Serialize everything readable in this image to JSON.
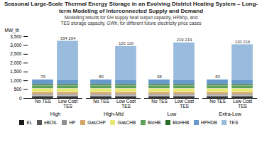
{
  "chart_data": {
    "type": "bar",
    "stacked": true,
    "title": "Seasonal Large-Scale Thermal Energy Storage in an Evolving District Heating System – Long-term Modeling of Interconnected Supply and Demand",
    "subtitle": "Modelling results for DH supply heat output capacity, HPAhp, and\nTES storage capacity, GWh, for different future electricity price cases",
    "ylabel": "MW_th",
    "categories": [
      "No TES",
      "Low Cost\nTES",
      "No TES",
      "Low Cost\nTES",
      "No TES",
      "Low Cost\nTES",
      "No TES",
      "Low Cost\nTES"
    ],
    "groups": [
      "High",
      "High",
      "High-Mid",
      "High-Mid",
      "Low",
      "Low",
      "Extra-Low",
      "Extra-Low"
    ],
    "series": [
      {
        "name": "EL",
        "color": "#1a1a1a",
        "values": [
          100,
          100,
          100,
          100,
          100,
          100,
          100,
          100
        ]
      },
      {
        "name": "eBOIL",
        "color": "#555555",
        "values": [
          50,
          50,
          50,
          50,
          50,
          50,
          50,
          50
        ]
      },
      {
        "name": "HP",
        "color": "#909090",
        "values": [
          80,
          80,
          80,
          80,
          80,
          80,
          80,
          80
        ]
      },
      {
        "name": "GasCHP",
        "color": "#d4a56a",
        "values": [
          120,
          120,
          120,
          120,
          120,
          120,
          120,
          120
        ]
      },
      {
        "name": "GasCHB",
        "color": "#e8e870",
        "values": [
          200,
          200,
          200,
          200,
          200,
          200,
          200,
          200
        ]
      },
      {
        "name": "BioHB",
        "color": "#5ca05c",
        "values": [
          150,
          150,
          150,
          150,
          150,
          150,
          150,
          150
        ]
      },
      {
        "name": "BioHHB",
        "color": "#2a6e2a",
        "values": [
          100,
          100,
          100,
          100,
          100,
          100,
          100,
          100
        ]
      },
      {
        "name": "HPHDB",
        "color": "#6699cc",
        "values": [
          250,
          250,
          250,
          250,
          250,
          250,
          250,
          250
        ]
      },
      {
        "name": "TES",
        "color": "#99bbdd",
        "values": [
          0,
          2200,
          0,
          1900,
          0,
          2100,
          0,
          2000
        ]
      }
    ],
    "annotations": [
      "79",
      "334 204",
      "80",
      "120 116",
      "98",
      "219 219",
      "83",
      "120 216"
    ],
    "ylim": [
      0,
      3500
    ],
    "yticks": [
      0,
      500,
      1000,
      1500,
      2000,
      2500,
      3000,
      3500
    ],
    "grid": false,
    "legend": "bottom"
  }
}
